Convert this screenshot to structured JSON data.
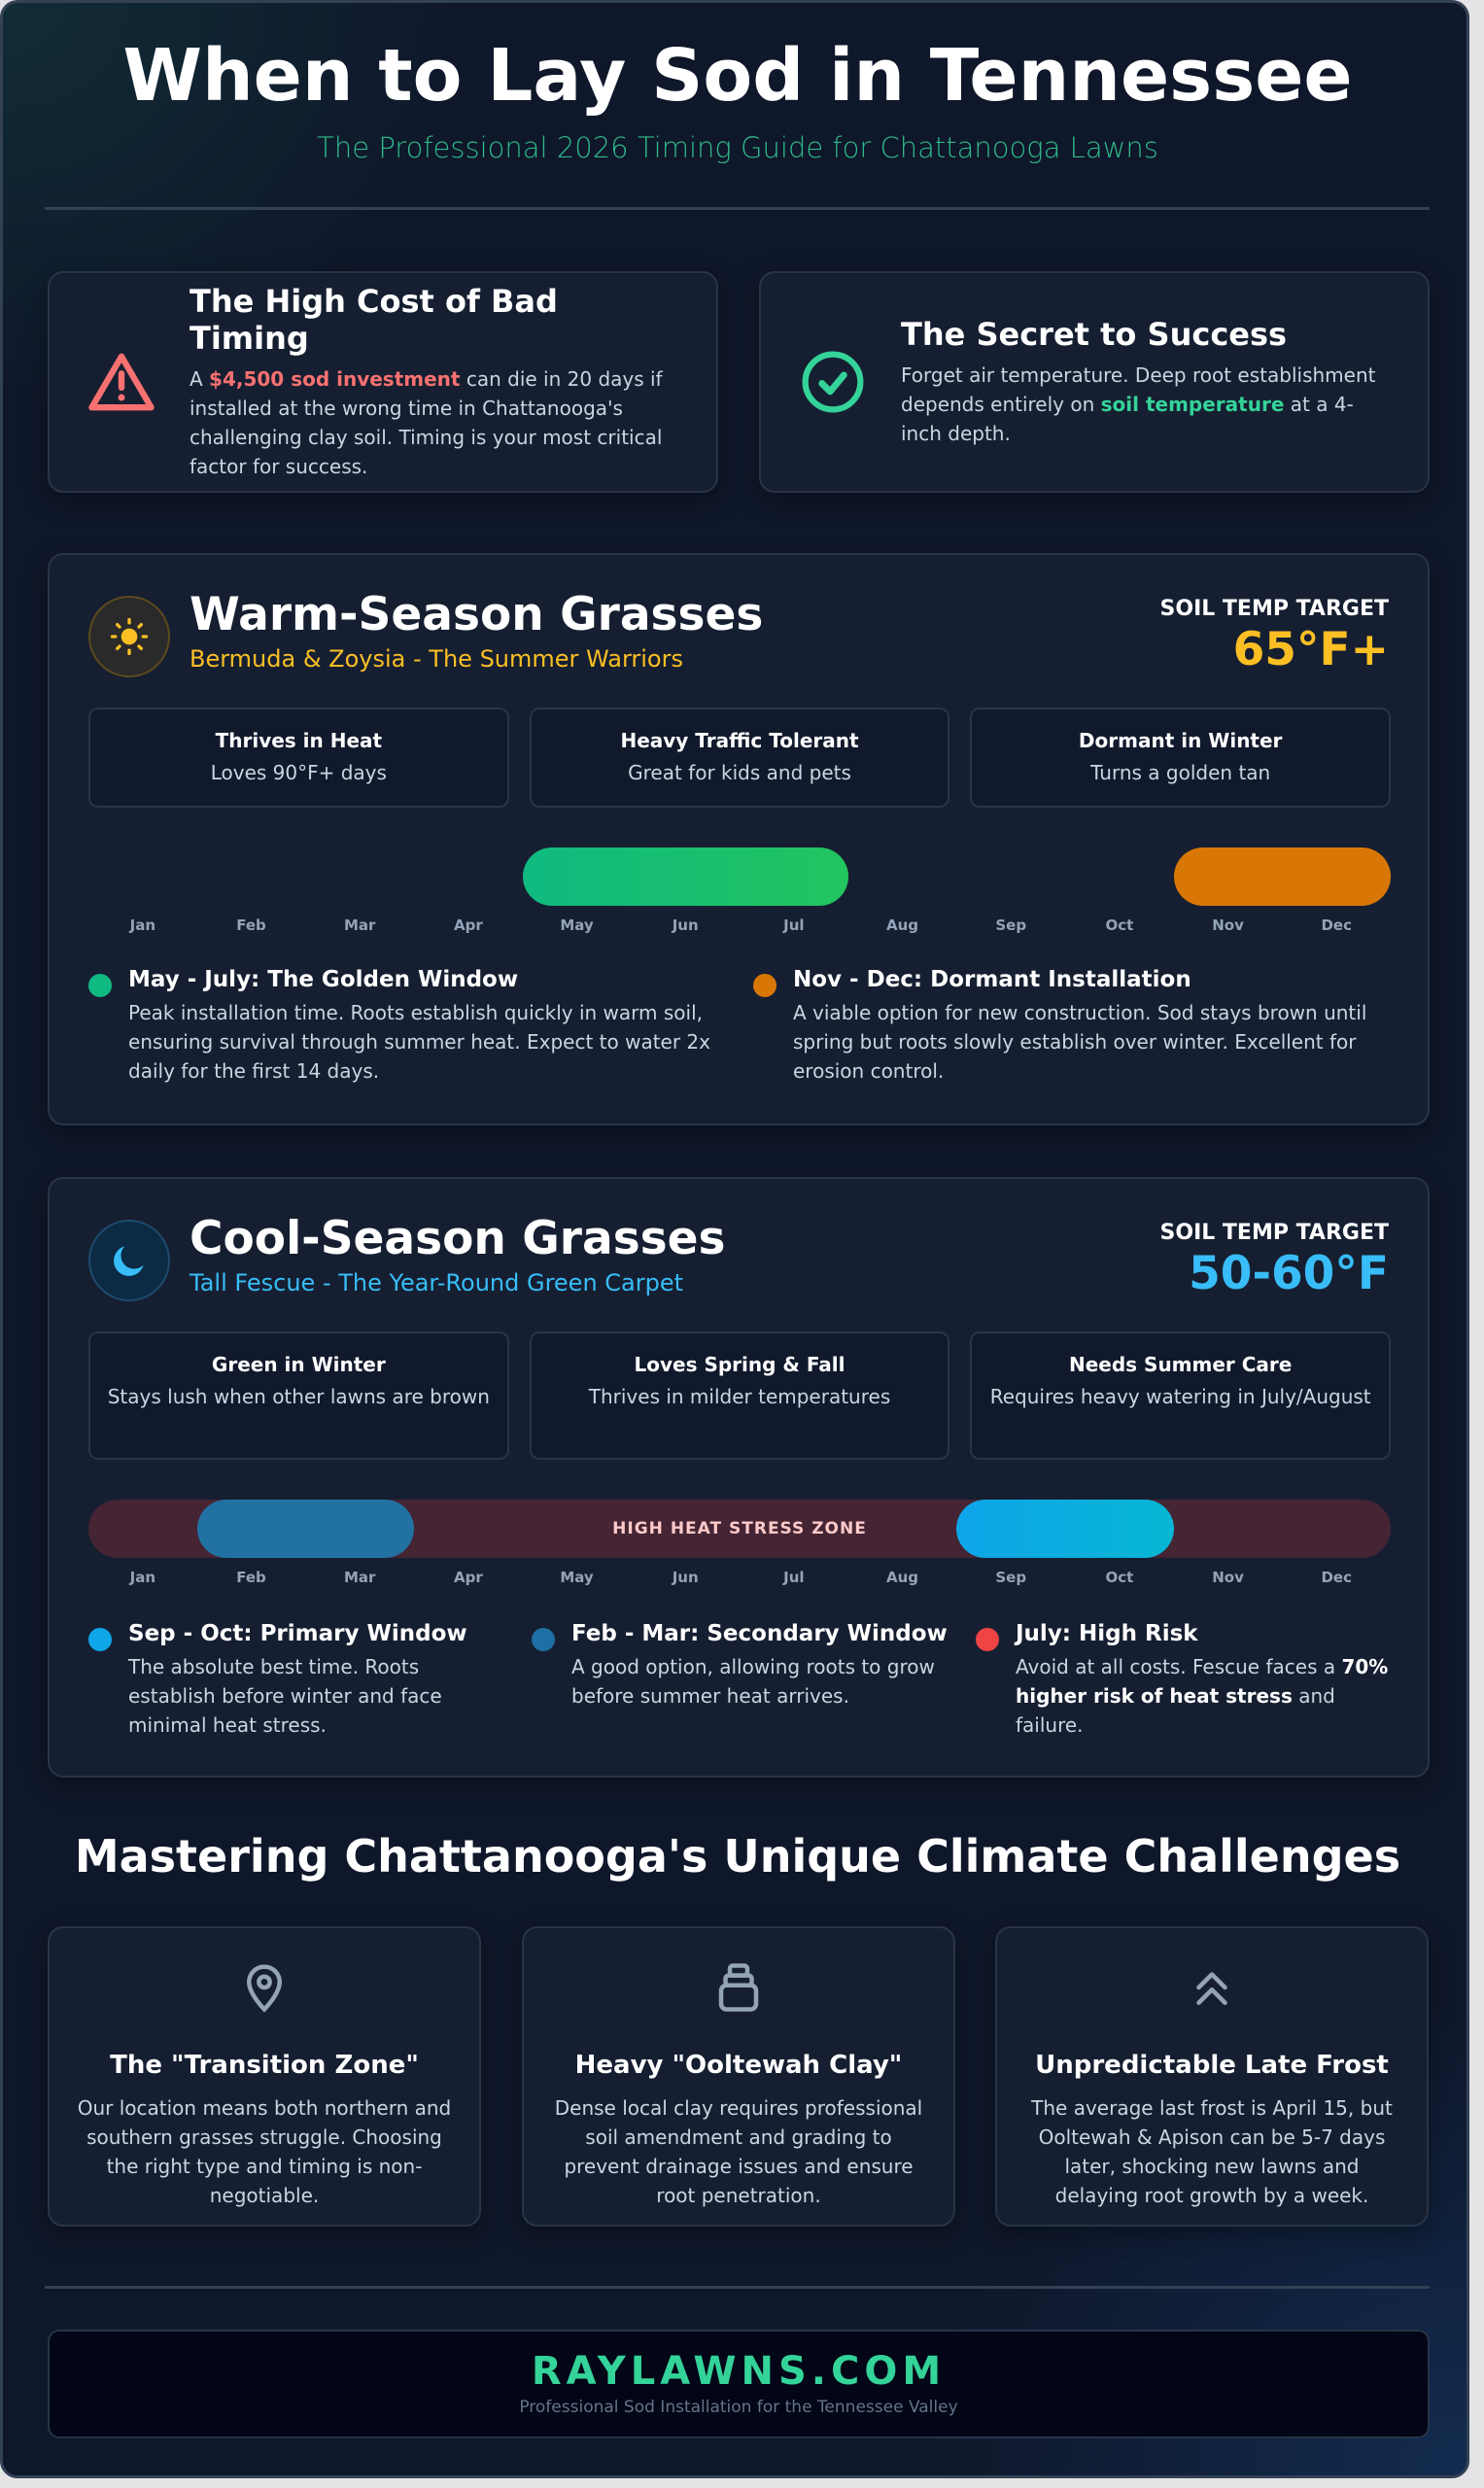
{
  "header": {
    "title": "When to Lay Sod in Tennessee",
    "subtitle": "The Professional 2026 Timing Guide for Chattanooga Lawns"
  },
  "intro": [
    {
      "icon": "warning-triangle-icon",
      "title": "The High Cost of Bad Timing",
      "pre": "A ",
      "highlight": "$4,500 sod investment",
      "post": " can die in 20 days if installed at the wrong time in Chattanooga's challenging clay soil. Timing is your most critical factor for success.",
      "color": "#f87171"
    },
    {
      "icon": "check-circle-icon",
      "title": "The Secret to Success",
      "pre": "Forget air temperature. Deep root establishment depends entirely on ",
      "highlight": "soil temperature",
      "post": " at a 4-inch depth.",
      "color": "#34d399"
    }
  ],
  "months": [
    "Jan",
    "Feb",
    "Mar",
    "Apr",
    "May",
    "Jun",
    "Jul",
    "Aug",
    "Sep",
    "Oct",
    "Nov",
    "Dec"
  ],
  "warm": {
    "icon": "sun-icon",
    "title": "Warm-Season Grasses",
    "subtitle": "Bermuda & Zoysia - The Summer Warriors",
    "accent": "#fbbf24",
    "target_label": "SOIL TEMP TARGET",
    "target_value": "65°F+",
    "features": [
      {
        "title": "Thrives in Heat",
        "desc": "Loves 90°F+ days"
      },
      {
        "title": "Heavy Traffic Tolerant",
        "desc": "Great for kids and pets"
      },
      {
        "title": "Dormant in Winter",
        "desc": "Turns a golden tan"
      }
    ],
    "bars": [
      {
        "start": "May",
        "end": "Jul",
        "color": "#10b981",
        "color2": "#22c55e"
      },
      {
        "start": "Nov",
        "end": "Dec",
        "color": "#d97706",
        "color2": "#d97706"
      }
    ],
    "legend": [
      {
        "color": "#10b981",
        "title": "May - July: The Golden Window",
        "desc": "Peak installation time. Roots establish quickly in warm soil, ensuring survival through summer heat. Expect to water 2x daily for the first 14 days."
      },
      {
        "color": "#d97706",
        "title": "Nov - Dec: Dormant Installation",
        "desc": "A viable option for new construction. Sod stays brown until spring but roots slowly establish over winter. Excellent for erosion control."
      }
    ]
  },
  "cool": {
    "icon": "moon-icon",
    "title": "Cool-Season Grasses",
    "subtitle": "Tall Fescue - The Year-Round Green Carpet",
    "accent": "#38bdf8",
    "target_label": "SOIL TEMP TARGET",
    "target_value": "50-60°F",
    "features": [
      {
        "title": "Green in Winter",
        "desc": "Stays lush when other lawns are brown"
      },
      {
        "title": "Loves Spring & Fall",
        "desc": "Thrives in milder temperatures"
      },
      {
        "title": "Needs Summer Care",
        "desc": "Requires heavy watering in July/August"
      }
    ],
    "zone_label": "HIGH HEAT STRESS ZONE",
    "zone_color": "#452433",
    "bars": [
      {
        "start": "Feb",
        "end": "Mar",
        "color": "#2271a3",
        "color2": "#2271a3"
      },
      {
        "start": "Sep",
        "end": "Oct",
        "color": "#0ea5e9",
        "color2": "#06b6d4"
      }
    ],
    "legend": [
      {
        "color": "#0ea5e9",
        "title": "Sep - Oct: Primary Window",
        "desc": "The absolute best time. Roots establish before winter and face minimal heat stress."
      },
      {
        "color": "#1e6fa3",
        "title": "Feb - Mar: Secondary Window",
        "desc": "A good option, allowing roots to grow before summer heat arrives."
      },
      {
        "color": "#ef4444",
        "title": "July: High Risk",
        "pre": "Avoid at all costs. Fescue faces a ",
        "strong": "70% higher risk of heat stress",
        "post": " and failure."
      }
    ]
  },
  "climate": {
    "heading": "Mastering Chattanooga's Unique Climate Challenges",
    "cards": [
      {
        "icon": "map-pin-icon",
        "title": "The \"Transition Zone\"",
        "desc": "Our location means both northern and southern grasses struggle. Choosing the right type and timing is non-negotiable."
      },
      {
        "icon": "soil-layers-icon",
        "title": "Heavy \"Ooltewah Clay\"",
        "desc": "Dense local clay requires professional soil amendment and grading to prevent drainage issues and ensure root penetration."
      },
      {
        "icon": "chevrons-up-icon",
        "title": "Unpredictable Late Frost",
        "desc": "The average last frost is April 15, but Ooltewah & Apison can be 5-7 days later, shocking new lawns and delaying root growth by a week."
      }
    ]
  },
  "footer": {
    "brand": "RAYLAWNS.COM",
    "tagline": "Professional Sod Installation for the Tennessee Valley"
  }
}
